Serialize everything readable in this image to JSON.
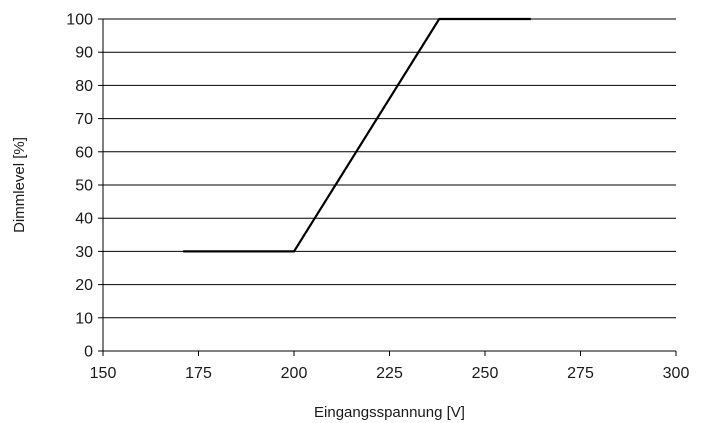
{
  "chart_data": {
    "type": "line",
    "xlabel": "Eingangsspannung [V]",
    "ylabel": "Dimmlevel [%]",
    "xlim": [
      150,
      300
    ],
    "ylim": [
      0,
      100
    ],
    "x_ticks": [
      150,
      175,
      200,
      225,
      250,
      275,
      300
    ],
    "y_ticks": [
      0,
      10,
      20,
      30,
      40,
      50,
      60,
      70,
      80,
      90,
      100
    ],
    "grid": "horizontal",
    "series": [
      {
        "x": [
          171,
          200,
          238,
          262
        ],
        "y": [
          30,
          30,
          100,
          100
        ]
      }
    ],
    "colors": {
      "line": "#000000",
      "grid": "#000000",
      "axis": "#000000"
    }
  }
}
